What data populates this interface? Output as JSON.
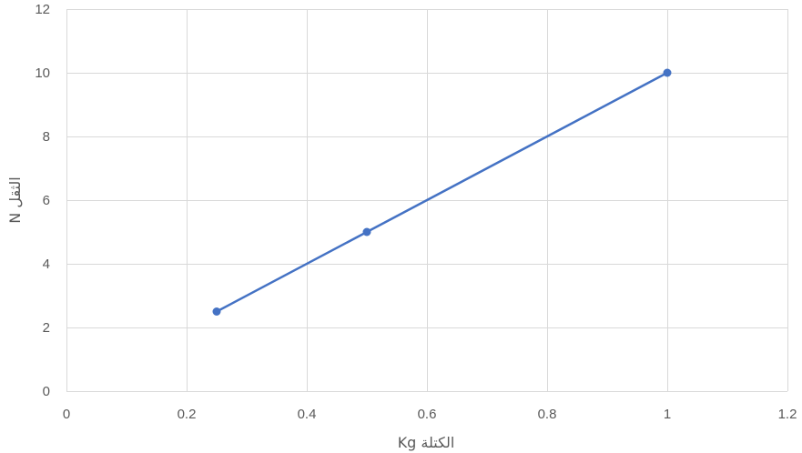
{
  "chart_data": {
    "type": "scatter",
    "title": "",
    "xlabel": "الكتلة Kg",
    "ylabel": "الثقل N",
    "xlim": [
      0,
      1.2
    ],
    "ylim": [
      0,
      12
    ],
    "x_ticks": [
      "0",
      "0.2",
      "0.4",
      "0.6",
      "0.8",
      "1",
      "1.2"
    ],
    "y_ticks": [
      "0",
      "2",
      "4",
      "6",
      "8",
      "10",
      "12"
    ],
    "grid": true,
    "legend": "none",
    "series": [
      {
        "x": [
          0.25,
          0.5,
          1.0
        ],
        "y": [
          2.5,
          5.0,
          10.0
        ],
        "color": "#4472c4",
        "line": true,
        "markers": true
      }
    ]
  }
}
